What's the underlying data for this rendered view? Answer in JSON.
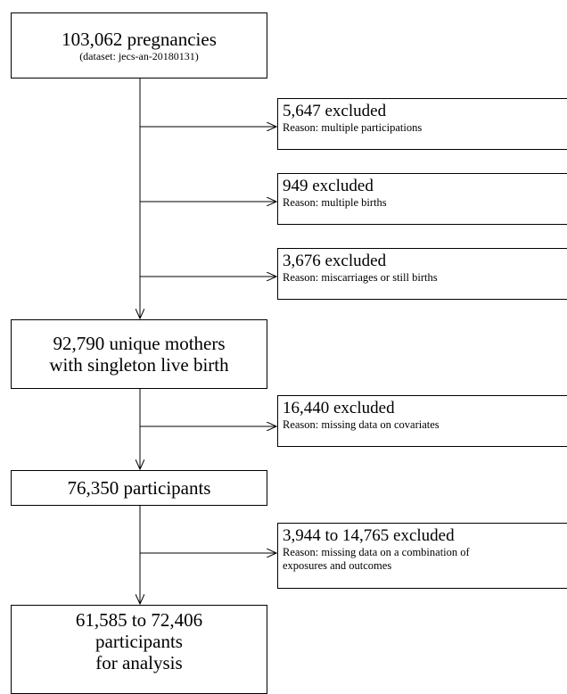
{
  "main_boxes": [
    {
      "line1": "103,062 pregnancies",
      "line2": "(dataset: jecs-an-20180131)"
    },
    {
      "line1": "92,790 unique mothers",
      "line2": "with singleton live birth"
    },
    {
      "line1": "76,350 participants"
    },
    {
      "line1": "61,585 to 72,406",
      "line2": "participants",
      "line3": "for analysis"
    }
  ],
  "exclusions": [
    {
      "count": "5,647 excluded",
      "reason": "Reason: multiple participations"
    },
    {
      "count": "949 excluded",
      "reason": "Reason: multiple births"
    },
    {
      "count": "3,676 excluded",
      "reason": "Reason: miscarriages or still births"
    },
    {
      "count": "16,440 excluded",
      "reason": "Reason: missing data on covariates"
    },
    {
      "count": "3,944 to 14,765 excluded",
      "reason": "Reason: missing data on a combination of",
      "reason2": "exposures and outcomes"
    }
  ],
  "colors": {
    "stroke": "#000000",
    "background": "#ffffff"
  }
}
